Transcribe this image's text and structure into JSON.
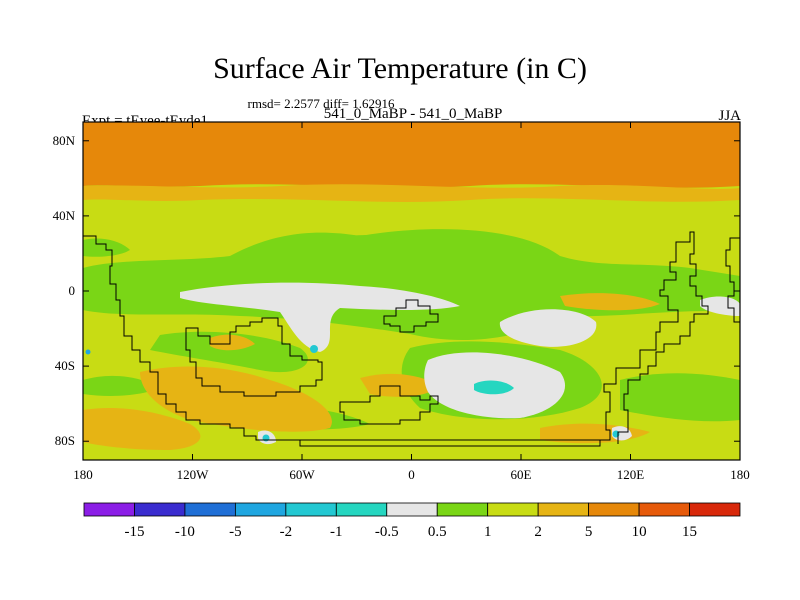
{
  "chart_data": {
    "type": "heatmap",
    "title": "Surface Air Temperature (in C)",
    "stats_line": "rmsd= 2.2577 diff= 1.62916",
    "left_label": "Expt = tEyee-tEyde1",
    "center_label": "541_0_MaBP - 541_0_MaBP",
    "right_label": "JJA",
    "x_ticks": [
      "180",
      "120W",
      "60W",
      "0",
      "60E",
      "120E",
      "180"
    ],
    "y_ticks": [
      "80N",
      "40N",
      "0",
      "40S",
      "80S"
    ],
    "xlim": [
      -180,
      180
    ],
    "ylim": [
      -90,
      90
    ],
    "colorbar": {
      "labels": [
        "-15",
        "-10",
        "-5",
        "-2",
        "-1",
        "-0.5",
        "0.5",
        "1",
        "2",
        "5",
        "10",
        "15"
      ],
      "colors": [
        "#8b1ee6",
        "#3a2ccf",
        "#1f6fd6",
        "#1fa6e0",
        "#23c8d2",
        "#25d6c0",
        "#e6e6e6",
        "#7ad616",
        "#c8dc14",
        "#e6b414",
        "#e6880a",
        "#e65a0a",
        "#d8280a"
      ]
    }
  }
}
